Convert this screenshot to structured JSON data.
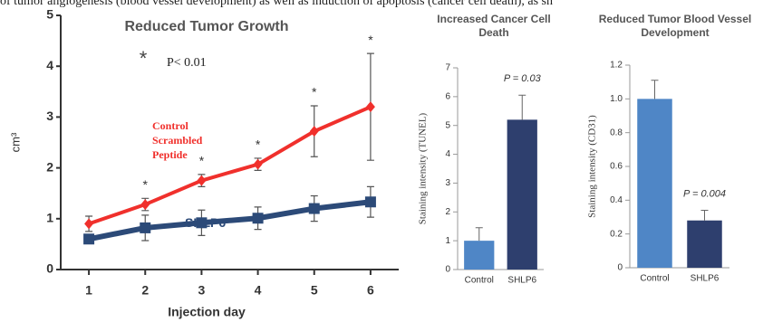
{
  "caption": "of tumor angiogenesis (blood vessel development) as well as induction of apoptosis (cancer cell death), as sh",
  "chart_data": [
    {
      "type": "line",
      "title": "Reduced Tumor Growth",
      "xlabel": "Injection day",
      "ylabel": "cm³",
      "x": [
        1,
        2,
        3,
        4,
        5,
        6
      ],
      "xlim": [
        0.5,
        6.5
      ],
      "xticks": [
        1,
        2,
        3,
        4,
        5,
        6
      ],
      "ylim": [
        0,
        5
      ],
      "yticks": [
        0,
        1,
        2,
        3,
        4,
        5
      ],
      "series": [
        {
          "name": "Control Scrambled Peptide",
          "color": "#f0302c",
          "marker": "diamond",
          "values": [
            0.9,
            1.28,
            1.75,
            2.07,
            2.72,
            3.2
          ],
          "errors": [
            0.15,
            0.12,
            0.12,
            0.12,
            0.5,
            1.05
          ]
        },
        {
          "name": "SHLP6",
          "color": "#2c4a78",
          "marker": "square",
          "values": [
            0.6,
            0.82,
            0.92,
            1.01,
            1.2,
            1.33
          ],
          "errors": [
            0.08,
            0.25,
            0.25,
            0.22,
            0.25,
            0.3
          ]
        }
      ],
      "significance_marks": [
        null,
        "*",
        "*",
        "*",
        "*",
        "*"
      ],
      "annotation_mark": "*",
      "annotation": "P< 0.01"
    },
    {
      "type": "bar",
      "title": "Increased Cancer Cell Death",
      "ylabel": "Staining intensity (TUNEL)",
      "categories": [
        "Control",
        "SHLP6"
      ],
      "values": [
        1.0,
        5.2
      ],
      "errors": [
        0.45,
        0.85
      ],
      "colors": [
        "#4f86c6",
        "#2e3f6e"
      ],
      "ylim": [
        0,
        7
      ],
      "yticks": [
        0,
        1,
        2,
        3,
        4,
        5,
        6,
        7
      ],
      "annotation": "P = 0.03"
    },
    {
      "type": "bar",
      "title": "Reduced Tumor Blood Vessel Development",
      "ylabel": "Staining intensity (CD31)",
      "categories": [
        "Control",
        "SHLP6"
      ],
      "values": [
        1.0,
        0.28
      ],
      "errors": [
        0.11,
        0.06
      ],
      "colors": [
        "#4f86c6",
        "#2e3f6e"
      ],
      "ylim": [
        0,
        1.2
      ],
      "yticks": [
        0,
        0.2,
        0.4,
        0.6,
        0.8,
        {
          "value": 1,
          "label": "1.0"
        },
        1.2
      ],
      "annotation": "P = 0.004"
    }
  ]
}
